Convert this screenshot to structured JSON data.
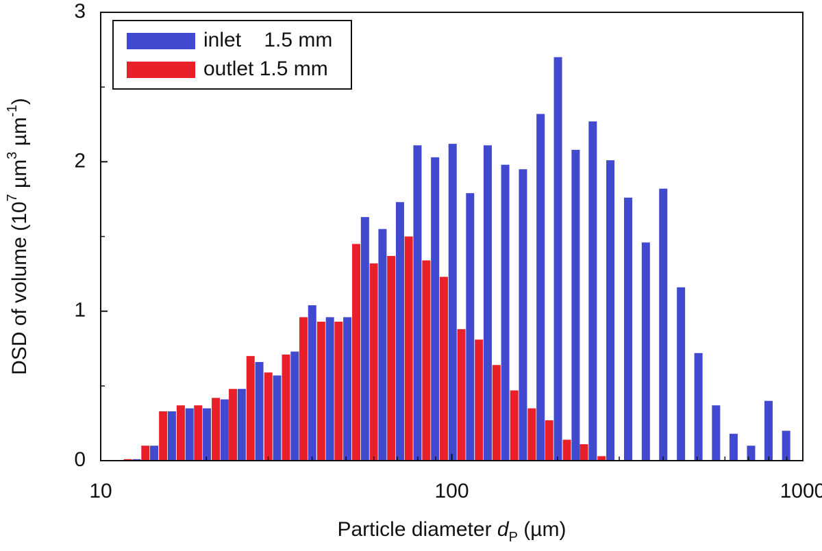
{
  "chart_data": {
    "type": "bar",
    "ylabel": [
      "DSD of volume (10",
      "7",
      " µm",
      "3",
      " µm",
      "-1",
      ")"
    ],
    "xlabel": [
      "Particle diameter ",
      "d",
      "P",
      " (µm)"
    ],
    "x": [
      12.3,
      13.8,
      15.5,
      17.4,
      19.5,
      21.9,
      24.5,
      27.5,
      30.9,
      34.7,
      38.9,
      43.7,
      49.0,
      55.0,
      61.7,
      69.2,
      77.6,
      87.1,
      97.7,
      109.6,
      123,
      138,
      155,
      174,
      195,
      219,
      245,
      275,
      309,
      347,
      389,
      437,
      490,
      550,
      617,
      692,
      776,
      871
    ],
    "series": [
      {
        "name": "inlet    1.5 mm",
        "color": "#4149cf",
        "values": [
          0.01,
          0.1,
          0.33,
          0.35,
          0.35,
          0.41,
          0.48,
          0.66,
          0.57,
          0.73,
          1.04,
          0.96,
          0.96,
          1.63,
          1.55,
          1.73,
          2.11,
          2.03,
          2.12,
          1.79,
          2.11,
          1.98,
          1.95,
          2.32,
          2.7,
          2.08,
          2.27,
          2.01,
          1.76,
          1.46,
          1.82,
          1.16,
          0.72,
          0.37,
          0.18,
          0.1,
          0.4,
          0.2
        ]
      },
      {
        "name": "outlet 1.5 mm",
        "color": "#e8202a",
        "values": [
          0.01,
          0.1,
          0.33,
          0.37,
          0.37,
          0.42,
          0.48,
          0.7,
          0.59,
          0.71,
          0.96,
          0.93,
          0.93,
          1.45,
          1.32,
          1.37,
          1.5,
          1.34,
          1.23,
          0.88,
          0.81,
          0.64,
          0.47,
          0.35,
          0.27,
          0.14,
          0.11,
          0.03,
          null,
          null,
          null,
          null,
          null,
          null,
          null,
          null,
          null,
          null
        ]
      }
    ],
    "xlim": [
      10,
      1000
    ],
    "xticks": [
      10,
      100,
      1000
    ],
    "xlog": true,
    "ylim": [
      0,
      3
    ],
    "yticks": [
      0,
      1,
      2,
      3
    ],
    "legend": "upper left",
    "grid": false
  }
}
